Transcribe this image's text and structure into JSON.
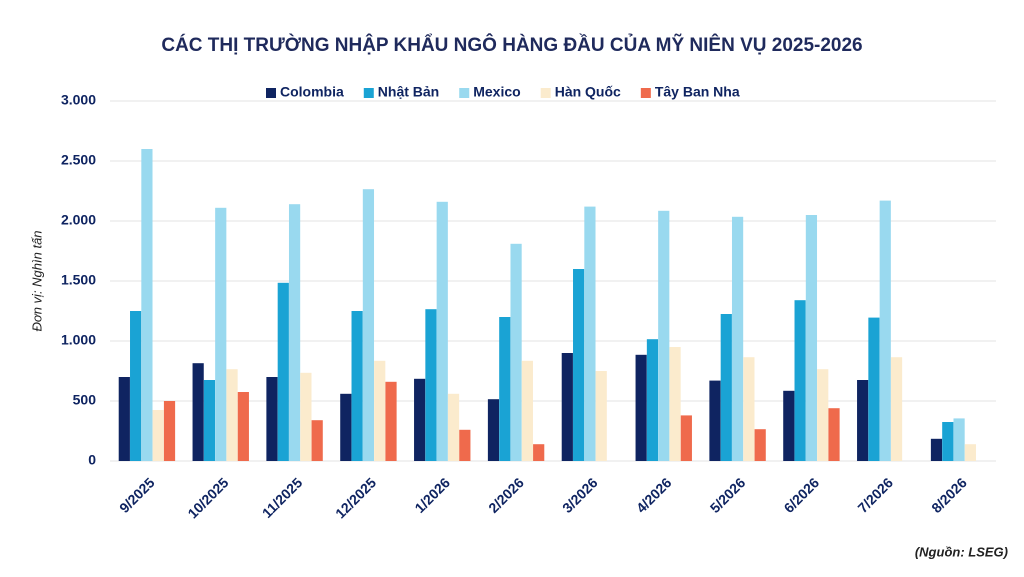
{
  "chart_data": {
    "type": "bar",
    "title": "CÁC THỊ TRƯỜNG NHẬP KHẨU NGÔ HÀNG ĐẦU CỦA MỸ NIÊN VỤ 2025-2026",
    "y_label": "Đơn vị: Nghìn tấn",
    "source": "(Nguồn: LSEG)",
    "categories": [
      "9/2025",
      "10/2025",
      "11/2025",
      "12/2025",
      "1/2026",
      "2/2026",
      "3/2026",
      "4/2026",
      "5/2026",
      "6/2026",
      "7/2026",
      "8/2026"
    ],
    "series": [
      {
        "name": "Colombia",
        "color": "#0f2461",
        "values": [
          700,
          815,
          700,
          560,
          685,
          515,
          900,
          885,
          670,
          585,
          675,
          185
        ]
      },
      {
        "name": "Nhật Bản",
        "color": "#1aa3d4",
        "values": [
          1250,
          675,
          1485,
          1250,
          1265,
          1200,
          1600,
          1015,
          1225,
          1340,
          1195,
          325
        ]
      },
      {
        "name": "Mexico",
        "color": "#99d9ef",
        "values": [
          2600,
          2110,
          2140,
          2265,
          2160,
          1810,
          2120,
          2085,
          2035,
          2050,
          2170,
          355
        ]
      },
      {
        "name": "Hàn Quốc",
        "color": "#fbebcd",
        "values": [
          425,
          765,
          735,
          835,
          560,
          835,
          750,
          950,
          865,
          765,
          865,
          140
        ]
      },
      {
        "name": "Tây Ban Nha",
        "color": "#ef6a4c",
        "values": [
          500,
          575,
          340,
          660,
          260,
          140,
          null,
          380,
          265,
          440,
          null,
          null
        ]
      }
    ],
    "ylim": [
      0,
      3000
    ],
    "yticks": [
      0,
      500,
      {
        "value": 1000,
        "label": "1.000"
      },
      {
        "value": 1500,
        "label": "1.500"
      },
      {
        "value": 2000,
        "label": "2.000"
      },
      {
        "value": 2500,
        "label": "2.500"
      },
      {
        "value": 3000,
        "label": "3.000"
      }
    ],
    "grid": true,
    "legend": "top"
  }
}
